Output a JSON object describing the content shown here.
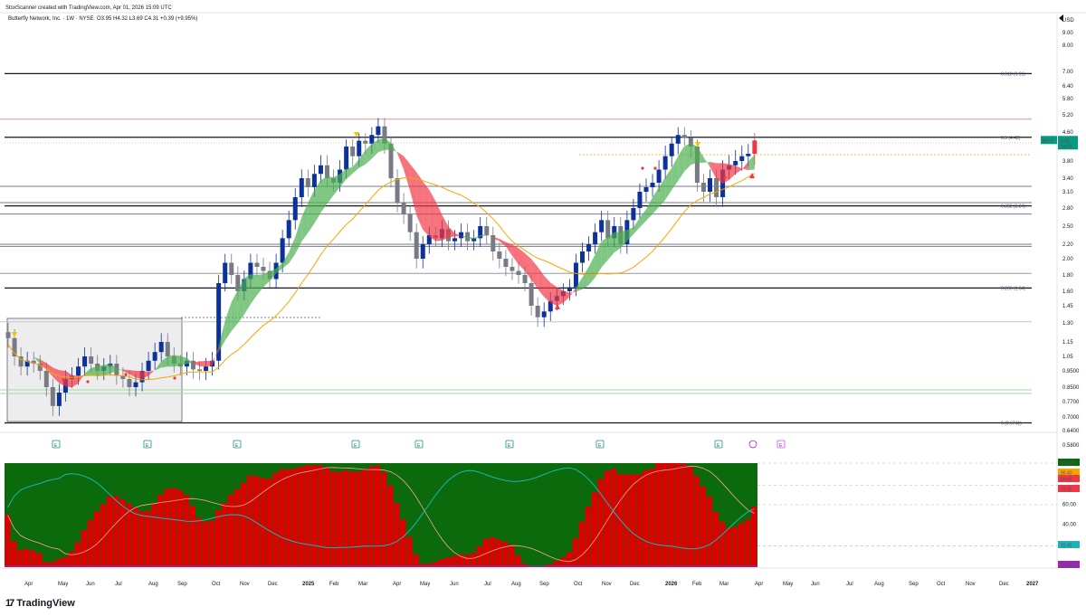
{
  "header": {
    "credit": "StoxScanner created with TradingView.com, Apr 01, 2026 15:09 UTC",
    "legend_prefix": "Butterfly Network, Inc. · 1W · NYSE",
    "ohlc": "O3.95 H4.32 L3.69 C4.31 +0.39 (+9.95%)"
  },
  "price_axis": {
    "currency": "USD",
    "ticks": [
      9.0,
      8.0,
      7.0,
      6.4,
      5.8,
      5.2,
      4.6,
      4.1,
      3.8,
      3.4,
      3.1,
      2.8,
      2.5,
      2.2,
      2.0,
      1.8,
      1.6,
      1.45,
      1.3,
      1.15,
      1.05,
      0.95,
      0.85,
      0.77,
      0.7,
      0.64,
      0.58
    ],
    "tick_labels": [
      "9.00",
      "8.00",
      "7.00",
      "6.40",
      "5.80",
      "5.20",
      "4.60",
      "4.10",
      "3.80",
      "3.40",
      "3.10",
      "2.80",
      "2.50",
      "2.20",
      "2.00",
      "1.80",
      "1.60",
      "1.45",
      "1.30",
      "1.15",
      "1.05",
      "0.9500",
      "0.8500",
      "0.7700",
      "0.7000",
      "0.6400",
      "0.5800"
    ]
  },
  "price_badge": {
    "ticker": "BFLY",
    "price": "4.31",
    "countdown": "1d 5h"
  },
  "fib_levels": [
    {
      "label": "0.618 (6.91)",
      "price": 6.91,
      "color": "#131722"
    },
    {
      "label": "0.5 (4.42)",
      "price": 4.42,
      "color": "#131722"
    },
    {
      "label": "0.382 (2.84)",
      "price": 2.84,
      "color": "#131722"
    },
    {
      "label": "0.236 (1.64)",
      "price": 1.64,
      "color": "#131722"
    },
    {
      "label": "0 (0.6741)",
      "price": 0.6741,
      "color": "#131722"
    }
  ],
  "gray_levels": [
    {
      "label": "",
      "price": 5.05,
      "color": "#f28b90"
    },
    {
      "label": "",
      "price": 3.22,
      "color": "#787b86"
    },
    {
      "label": "",
      "price": 2.9,
      "color": "#787b86"
    },
    {
      "label": "",
      "price": 2.7,
      "color": "#787b86"
    },
    {
      "label": "",
      "price": 2.2,
      "color": "#787b86"
    },
    {
      "label": "",
      "price": 2.17,
      "color": "#787b86"
    },
    {
      "label": "",
      "price": 1.82,
      "color": "#9598a1"
    },
    {
      "label": "",
      "price": 1.31,
      "color": "#c4c6cc"
    },
    {
      "label": "",
      "price": 0.835,
      "color": "#a5d6a7"
    },
    {
      "label": "",
      "price": 0.815,
      "color": "#a5d6a7"
    }
  ],
  "time_axis": {
    "labels": [
      "Apr",
      "May",
      "Jun",
      "Jul",
      "Aug",
      "Sep",
      "Oct",
      "Nov",
      "Dec",
      "2025",
      "Feb",
      "Mar",
      "Apr",
      "May",
      "Jun",
      "Jul",
      "Aug",
      "Sep",
      "Oct",
      "Nov",
      "Dec",
      "2026",
      "Feb",
      "Mar",
      "Apr",
      "May",
      "Jun",
      "Jul",
      "Aug",
      "Sep",
      "Oct",
      "Nov",
      "Dec",
      "2027"
    ],
    "bold": [
      "2025",
      "2026",
      "2027"
    ]
  },
  "events": {
    "earnings_label": "E",
    "dividend_label": "E"
  },
  "oscillator": {
    "axis_labels": [
      "100.00",
      "90.40",
      "89.65",
      "78.80",
      "60.00",
      "40.00",
      "20.45",
      "0.7500"
    ],
    "axis_values": [
      100,
      90.4,
      89.65,
      78.8,
      60,
      40,
      20.45,
      0.75
    ]
  },
  "chart_data": {
    "type": "candlestick",
    "symbol": "BFLY",
    "timeframe": "1W",
    "candles_close": [
      1.18,
      1.05,
      0.98,
      1.02,
      1.0,
      0.95,
      0.85,
      0.75,
      0.82,
      0.9,
      0.92,
      0.98,
      1.05,
      1.0,
      0.95,
      0.98,
      1.0,
      0.92,
      0.9,
      0.85,
      0.88,
      0.95,
      1.02,
      1.08,
      1.15,
      1.05,
      1.0,
      0.98,
      1.02,
      0.96,
      0.95,
      0.98,
      1.02,
      1.7,
      1.95,
      1.8,
      1.6,
      1.75,
      1.95,
      1.9,
      1.85,
      1.75,
      1.95,
      2.3,
      2.6,
      3.0,
      3.4,
      3.2,
      3.5,
      3.7,
      3.4,
      3.3,
      3.6,
      4.1,
      3.9,
      4.3,
      4.2,
      4.5,
      4.8,
      4.2,
      3.4,
      2.9,
      2.7,
      2.4,
      2.0,
      2.2,
      2.35,
      2.3,
      2.45,
      2.25,
      2.3,
      2.4,
      2.25,
      2.3,
      2.5,
      2.35,
      2.1,
      2.0,
      1.9,
      1.85,
      1.8,
      1.7,
      1.45,
      1.35,
      1.4,
      1.5,
      1.55,
      1.6,
      1.65,
      1.95,
      2.1,
      2.2,
      2.4,
      2.6,
      2.3,
      2.5,
      2.2,
      2.6,
      2.8,
      3.1,
      3.2,
      3.3,
      3.6,
      3.9,
      4.2,
      4.5,
      4.4,
      4.1,
      3.3,
      3.1,
      3.4,
      3.0,
      3.6,
      3.7,
      3.8,
      3.9,
      3.95,
      4.31
    ],
    "oscillator": {
      "series": [
        {
          "name": "",
          "color": "#dd0000"
        },
        {
          "name": "",
          "color": "#ff7f7f"
        },
        {
          "name": "",
          "color": "#20b2b8"
        }
      ],
      "levels": [
        100,
        90.4,
        89.65,
        78.8,
        60,
        40,
        20.45,
        0.75
      ],
      "ylim": [
        0,
        100
      ]
    }
  },
  "brand": {
    "name": "TradingView"
  }
}
